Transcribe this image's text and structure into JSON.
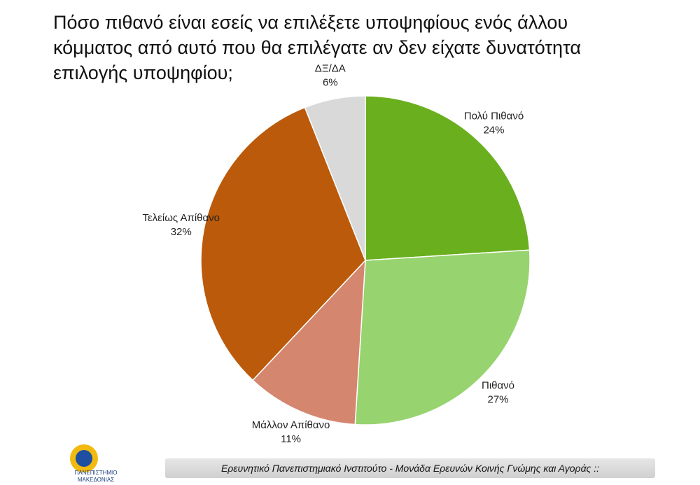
{
  "chart_data": {
    "type": "pie",
    "title": "Πόσο πιθανό είναι εσείς να επιλέξετε υποψηφίους ενός άλλου κόμματος από αυτό που θα επιλέγατε αν δεν είχατε δυνατότητα επιλογής υποψηφίου;",
    "categories": [
      "Πολύ Πιθανό",
      "Πιθανό",
      "Μάλλον Απίθανο",
      "Τελείως Απίθανο",
      "ΔΞ/ΔΑ"
    ],
    "values": [
      24,
      27,
      11,
      32,
      6
    ],
    "value_labels": [
      "24%",
      "27%",
      "11%",
      "32%",
      "6%"
    ],
    "colors": [
      "#6aaf1e",
      "#97d36e",
      "#d4866f",
      "#bb5a0a",
      "#d9d9d9"
    ]
  },
  "footer": "Ερευνητικό Πανεπιστημιακό Ινστιτούτο - Μονάδα Ερευνών Κοινής Γνώμης και Αγοράς ::",
  "logo": {
    "line1": "ΠΑΝΕΠΙΣΤΗΜΙΟ",
    "line2": "ΜΑΚΕΔΟΝΙΑΣ"
  }
}
